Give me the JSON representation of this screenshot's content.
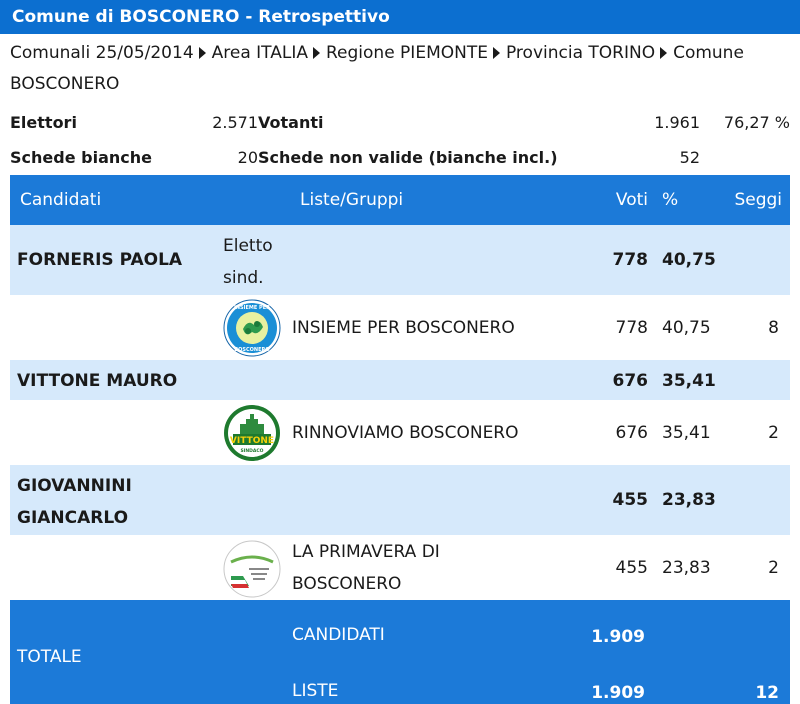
{
  "window": {
    "title": "Comune di BOSCONERO - Retrospettivo"
  },
  "breadcrumb": {
    "items": [
      "Comunali 25/05/2014",
      "Area ITALIA",
      "Regione PIEMONTE",
      "Provincia TORINO",
      "Comune BOSCONERO"
    ]
  },
  "stats": {
    "elettori_label": "Elettori",
    "elettori_value": "2.571",
    "votanti_label": "Votanti",
    "votanti_value": "1.961",
    "votanti_pct": "76,27 %",
    "bianche_label": "Schede bianche",
    "bianche_value": "20",
    "nonvalide_label": "Schede non valide (bianche incl.)",
    "nonvalide_value": "52"
  },
  "table": {
    "headers": {
      "candidati": "Candidati",
      "liste": "Liste/Gruppi",
      "voti": "Voti",
      "pct": "%",
      "seggi": "Seggi"
    },
    "rows": [
      {
        "candidate": "FORNERIS PAOLA",
        "note": "Eletto sind.",
        "voti": "778",
        "pct": "40,75"
      },
      {
        "list": "INSIEME PER BOSCONERO",
        "voti": "778",
        "pct": "40,75",
        "seggi": "8",
        "logo": "insieme-logo-icon"
      },
      {
        "candidate": "VITTONE MAURO",
        "note": "",
        "voti": "676",
        "pct": "35,41"
      },
      {
        "list": "RINNOVIAMO BOSCONERO",
        "voti": "676",
        "pct": "35,41",
        "seggi": "2",
        "logo": "vittone-logo-icon"
      },
      {
        "candidate": "GIOVANNINI GIANCARLO",
        "note": "",
        "voti": "455",
        "pct": "23,83"
      },
      {
        "list": "LA PRIMAVERA DI BOSCONERO",
        "voti": "455",
        "pct": "23,83",
        "seggi": "2",
        "logo": "primavera-logo-icon"
      }
    ],
    "logo_texts": {
      "insieme_top": "INSIEME PER",
      "insieme_bottom": "BOSCONERO",
      "vittone_name": "VITTONE",
      "vittone_sub": "SINDACO"
    },
    "total": {
      "label": "TOTALE",
      "candidati_label": "CANDIDATI",
      "candidati_value": "1.909",
      "liste_label": "LISTE",
      "liste_value": "1.909",
      "seggi": "12"
    }
  },
  "colors": {
    "header_blue": "#0c6fd0",
    "table_blue": "#1c7ad8",
    "row_light": "#d6e9fb"
  }
}
